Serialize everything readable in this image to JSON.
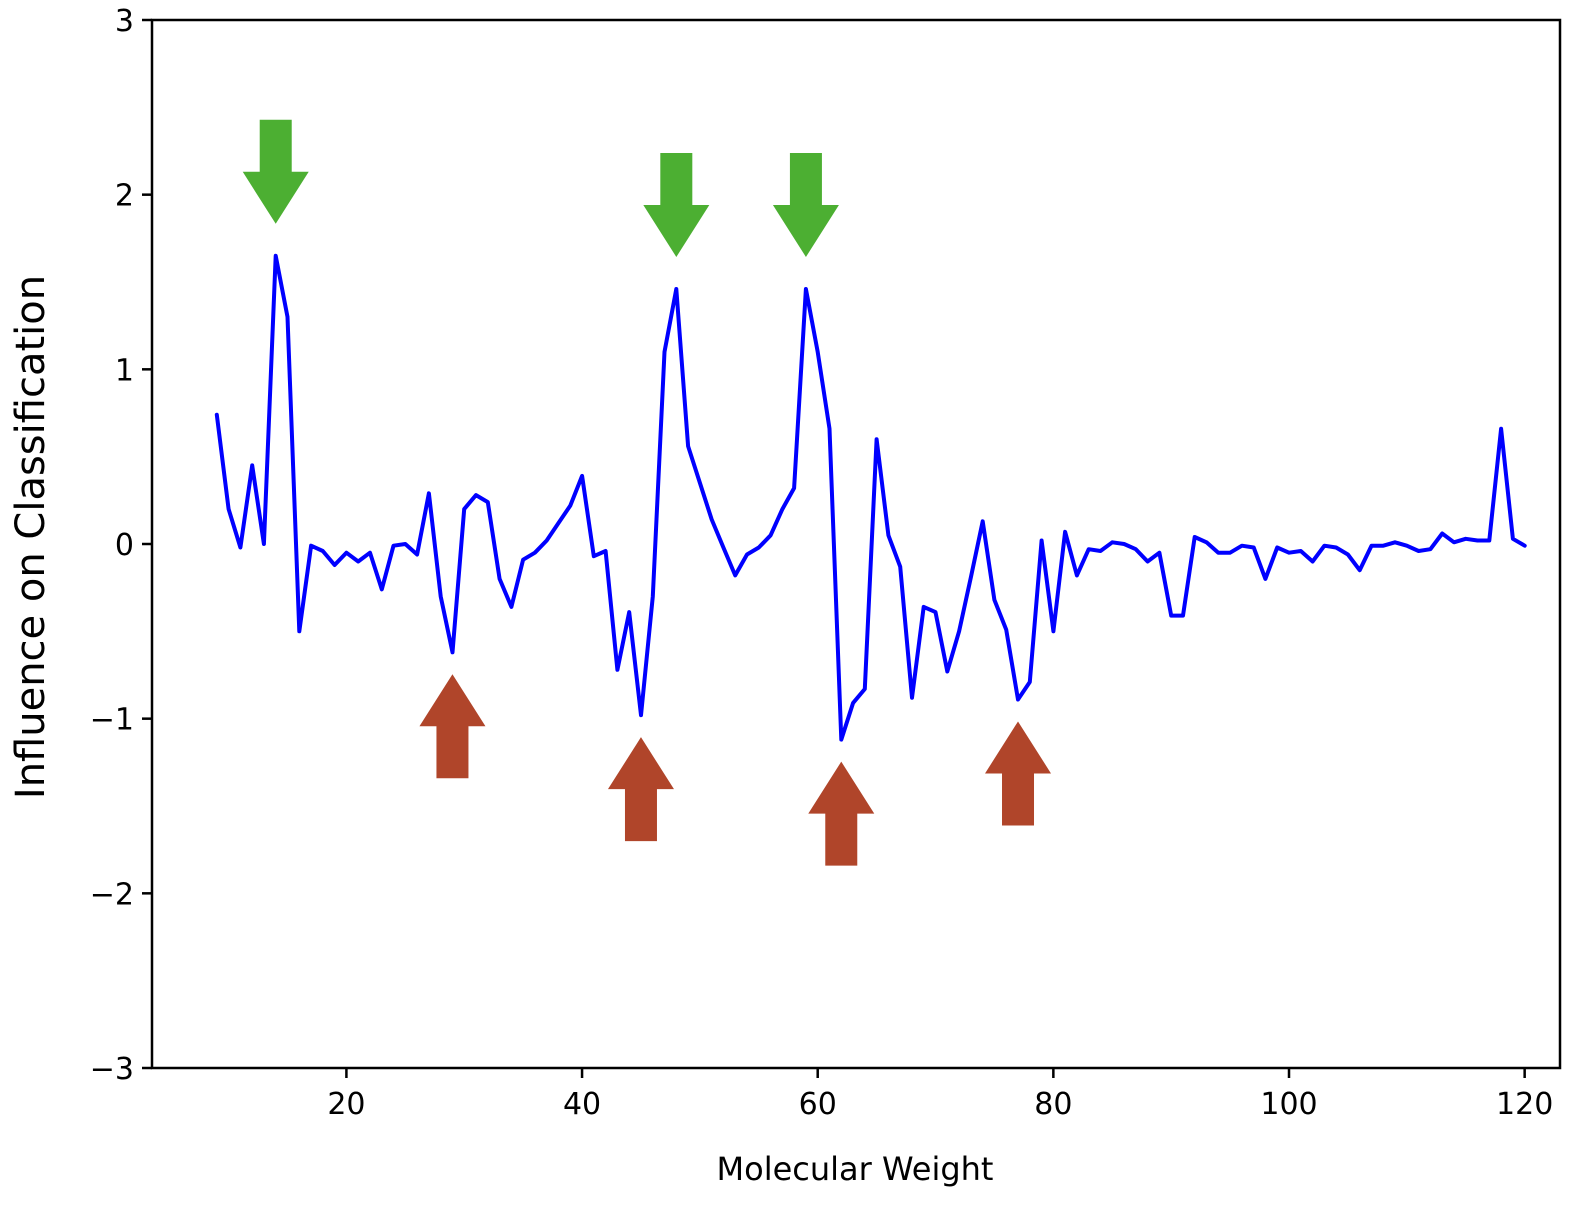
{
  "chart_data": {
    "type": "line",
    "title": "",
    "xlabel": "Molecular Weight",
    "ylabel": "Influence on Classification",
    "xlim": [
      3.5,
      123
    ],
    "ylim": [
      -3,
      3
    ],
    "xticks": [
      20,
      40,
      60,
      80,
      100,
      120
    ],
    "yticks": [
      -3,
      -2,
      -1,
      0,
      1,
      2,
      3
    ],
    "ytick_labels": [
      "−3",
      "−2",
      "−1",
      "0",
      "1",
      "2",
      "3"
    ],
    "grid": false,
    "line_color": "#0000ff",
    "series": [
      {
        "x": [
          9,
          10,
          11,
          12,
          13,
          14,
          15,
          16,
          17,
          18,
          19,
          20,
          21,
          22,
          23,
          24,
          25,
          26,
          27,
          28,
          29,
          30,
          31,
          32,
          33,
          34,
          35,
          36,
          37,
          38,
          39,
          40,
          41,
          42,
          43,
          44,
          45,
          46,
          47,
          48,
          49,
          50,
          51,
          52,
          53,
          54,
          55,
          56,
          57,
          58,
          59,
          60,
          61,
          62,
          63,
          64,
          65,
          66,
          67,
          68,
          69,
          70,
          71,
          72,
          73,
          74,
          75,
          76,
          77,
          78,
          79,
          80,
          81,
          82,
          83,
          84,
          85,
          86,
          87,
          88,
          89,
          90,
          91,
          92,
          93,
          94,
          95,
          96,
          97,
          98,
          99,
          100,
          101,
          102,
          103,
          104,
          105,
          106,
          107,
          108,
          109,
          110,
          111,
          112,
          113,
          114,
          115,
          116,
          117,
          118,
          119,
          120
        ],
        "y": [
          0.74,
          0.2,
          -0.02,
          0.45,
          0.0,
          1.65,
          1.3,
          -0.5,
          -0.01,
          -0.04,
          -0.12,
          -0.05,
          -0.1,
          -0.05,
          -0.26,
          -0.01,
          0.0,
          -0.06,
          0.29,
          -0.3,
          -0.62,
          0.2,
          0.28,
          0.24,
          -0.2,
          -0.36,
          -0.09,
          -0.05,
          0.02,
          0.12,
          0.22,
          0.39,
          -0.07,
          -0.04,
          -0.72,
          -0.39,
          -0.98,
          -0.3,
          1.1,
          1.46,
          0.56,
          0.35,
          0.14,
          -0.02,
          -0.18,
          -0.06,
          -0.02,
          0.05,
          0.2,
          0.32,
          1.46,
          1.1,
          0.66,
          -1.12,
          -0.91,
          -0.83,
          0.6,
          0.05,
          -0.13,
          -0.88,
          -0.36,
          -0.39,
          -0.73,
          -0.5,
          -0.19,
          0.13,
          -0.32,
          -0.49,
          -0.89,
          -0.79,
          0.02,
          -0.5,
          0.07,
          -0.18,
          -0.03,
          -0.04,
          0.01,
          0.0,
          -0.03,
          -0.1,
          -0.05,
          -0.41,
          -0.41,
          0.04,
          0.01,
          -0.05,
          -0.05,
          -0.01,
          -0.02,
          -0.2,
          -0.02,
          -0.05,
          -0.04,
          -0.1,
          -0.01,
          -0.02,
          -0.06,
          -0.15,
          -0.01,
          -0.01,
          0.01,
          -0.01,
          -0.04,
          -0.03,
          0.06,
          0.01,
          0.03,
          0.02,
          0.02,
          0.66,
          0.03,
          -0.01
        ]
      }
    ],
    "annotations": {
      "down_arrows": {
        "color": "#4caf32",
        "x": [
          14,
          48,
          59
        ]
      },
      "up_arrows": {
        "color": "#b0452a",
        "x": [
          29,
          45,
          62,
          77
        ]
      }
    }
  }
}
